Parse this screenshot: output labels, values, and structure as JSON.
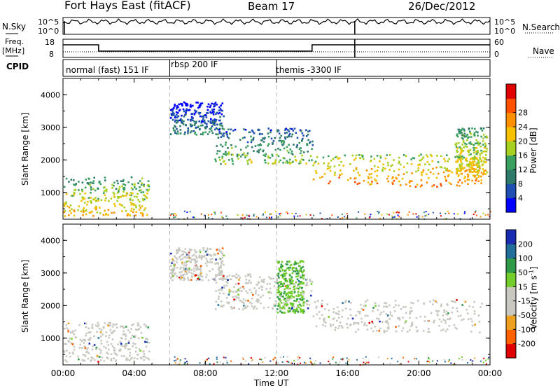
{
  "header": {
    "station": "Fort Hays East (fitACF)",
    "beam": "Beam 17",
    "date": "26/Dec/2012"
  },
  "left_labels": {
    "nsky": "N.Sky",
    "freq_top": "Freq.",
    "freq_unit": "[MHz]",
    "cpid": "CPID"
  },
  "right_labels": {
    "nsearch": "N.Search",
    "nave": "Nave"
  },
  "noise_axis": {
    "left_top": "10^5",
    "left_bottom": "10^0",
    "right_top": "10^5",
    "right_bottom": "10^0"
  },
  "freq_axis": {
    "left_top": "18",
    "left_bottom": "8",
    "right_top": "60",
    "right_bottom": "0"
  },
  "cpid_segments": [
    {
      "label": "normal (fast) 151 IF",
      "start_hour": 0,
      "end_hour": 6
    },
    {
      "label": "rbsp 200 IF",
      "start_hour": 6,
      "end_hour": 12
    },
    {
      "label": "themis -3300 IF",
      "start_hour": 12,
      "end_hour": 24
    }
  ],
  "chart_data": [
    {
      "type": "heatmap",
      "panel": "power",
      "ylabel": "Slant Range [km]",
      "xlabel": "Time UT",
      "ylim": [
        180,
        4500
      ],
      "xlim": [
        0,
        24
      ],
      "yticks": [
        1000,
        2000,
        3000,
        4000
      ],
      "xtick_labels": [
        "00:00",
        "04:00",
        "08:00",
        "12:00",
        "16:00",
        "20:00",
        "00:00"
      ],
      "colorbar": {
        "label": "Power [dB]",
        "ticks": [
          4,
          8,
          12,
          16,
          20,
          24,
          28
        ],
        "colors": [
          "#0000ff",
          "#1f4fb0",
          "#2e7a6a",
          "#3aa060",
          "#a8d020",
          "#f5c000",
          "#ff9000",
          "#ff5000",
          "#e00000"
        ]
      },
      "echo_bands": [
        {
          "t_start": 0.0,
          "t_end": 4.8,
          "r_low": 300,
          "r_high": 1500,
          "power": 22
        },
        {
          "t_start": 6.0,
          "t_end": 9.0,
          "r_low": 2800,
          "r_high": 3800,
          "power": 10
        },
        {
          "t_start": 8.5,
          "t_end": 14.0,
          "r_low": 1900,
          "r_high": 3000,
          "power": 16
        },
        {
          "t_start": 14.0,
          "t_end": 23.5,
          "r_low": 1200,
          "r_high": 2200,
          "power": 26
        },
        {
          "t_start": 22.0,
          "t_end": 23.8,
          "r_low": 1500,
          "r_high": 3000,
          "power": 22
        }
      ]
    },
    {
      "type": "heatmap",
      "panel": "velocity",
      "ylabel": "Slant Range [km]",
      "xlabel": "Time UT",
      "ylim": [
        180,
        4500
      ],
      "xlim": [
        0,
        24
      ],
      "yticks": [
        1000,
        2000,
        3000,
        4000
      ],
      "xtick_labels": [
        "00:00",
        "04:00",
        "08:00",
        "12:00",
        "16:00",
        "20:00",
        "00:00"
      ],
      "colorbar": {
        "label": "Velocity [m s",
        "label_sup": "-1",
        "label_end": "]",
        "ticks": [
          200,
          100,
          50,
          15,
          -15,
          -50,
          -100,
          -200
        ],
        "colors": [
          "#1a2db0",
          "#1f6f9a",
          "#2e9a48",
          "#72cc2a",
          "#c8c8c0",
          "#c8c8c0",
          "#f0a020",
          "#ff6000",
          "#e00000"
        ]
      },
      "echo_bands": [
        {
          "t_start": 0.0,
          "t_end": 4.8,
          "r_low": 300,
          "r_high": 1500,
          "velocity": 0
        },
        {
          "t_start": 6.0,
          "t_end": 9.0,
          "r_low": 2800,
          "r_high": 3800,
          "velocity": 0
        },
        {
          "t_start": 8.5,
          "t_end": 14.0,
          "r_low": 1900,
          "r_high": 3000,
          "velocity": 0
        },
        {
          "t_start": 14.0,
          "t_end": 23.5,
          "r_low": 1200,
          "r_high": 2200,
          "velocity": 0
        },
        {
          "t_start": 12.0,
          "t_end": 13.5,
          "r_low": 1800,
          "r_high": 3400,
          "velocity": 40
        }
      ]
    }
  ]
}
